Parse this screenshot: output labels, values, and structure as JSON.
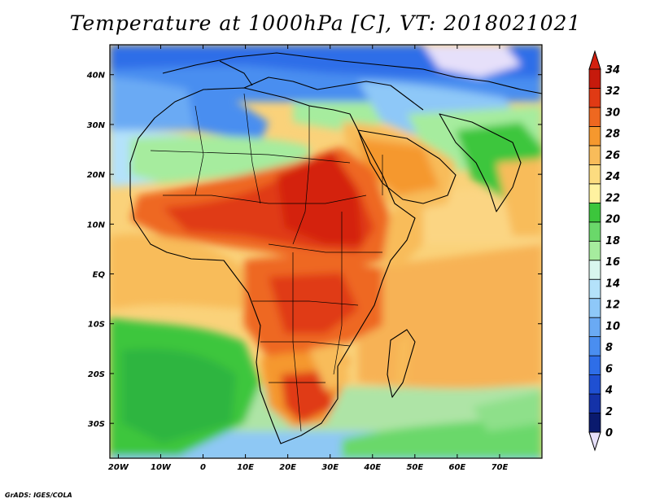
{
  "title": "Temperature at 1000hPa [C], VT: 2018021021",
  "credit": "GrADS: IGES/COLA",
  "map": {
    "lon_range": [
      -22,
      80
    ],
    "lat_range": [
      -37,
      46
    ],
    "lon_ticks": [
      {
        "value": -20,
        "label": "20W"
      },
      {
        "value": -10,
        "label": "10W"
      },
      {
        "value": 0,
        "label": "0"
      },
      {
        "value": 10,
        "label": "10E"
      },
      {
        "value": 20,
        "label": "20E"
      },
      {
        "value": 30,
        "label": "30E"
      },
      {
        "value": 40,
        "label": "40E"
      },
      {
        "value": 50,
        "label": "50E"
      },
      {
        "value": 60,
        "label": "60E"
      },
      {
        "value": 70,
        "label": "70E"
      }
    ],
    "lat_ticks": [
      {
        "value": 40,
        "label": "40N"
      },
      {
        "value": 30,
        "label": "30N"
      },
      {
        "value": 20,
        "label": "20N"
      },
      {
        "value": 10,
        "label": "10N"
      },
      {
        "value": 0,
        "label": "EQ"
      },
      {
        "value": -10,
        "label": "10S"
      },
      {
        "value": -20,
        "label": "20S"
      },
      {
        "value": -30,
        "label": "30S"
      }
    ]
  },
  "colorbar": {
    "labels": [
      "0",
      "2",
      "4",
      "6",
      "8",
      "10",
      "12",
      "14",
      "16",
      "18",
      "20",
      "22",
      "24",
      "26",
      "28",
      "30",
      "32",
      "34"
    ],
    "colors": [
      "#0a1a6e",
      "#1432a8",
      "#1f50d2",
      "#2e6ee8",
      "#4a8ef0",
      "#6aaaf4",
      "#8ec8f8",
      "#b4e2fa",
      "#d8f6ee",
      "#a6ec9e",
      "#6ad86a",
      "#3cc63c",
      "#fff2a0",
      "#fcdc80",
      "#f8bc5a",
      "#f5982e",
      "#ee6820",
      "#e03a14",
      "#c61a0c"
    ],
    "under_color": "#e6e0fa",
    "over_color": "#d42010"
  },
  "colors": {
    "ocean_south": "#8cc8f4",
    "land_north": "#3f8ee8"
  }
}
